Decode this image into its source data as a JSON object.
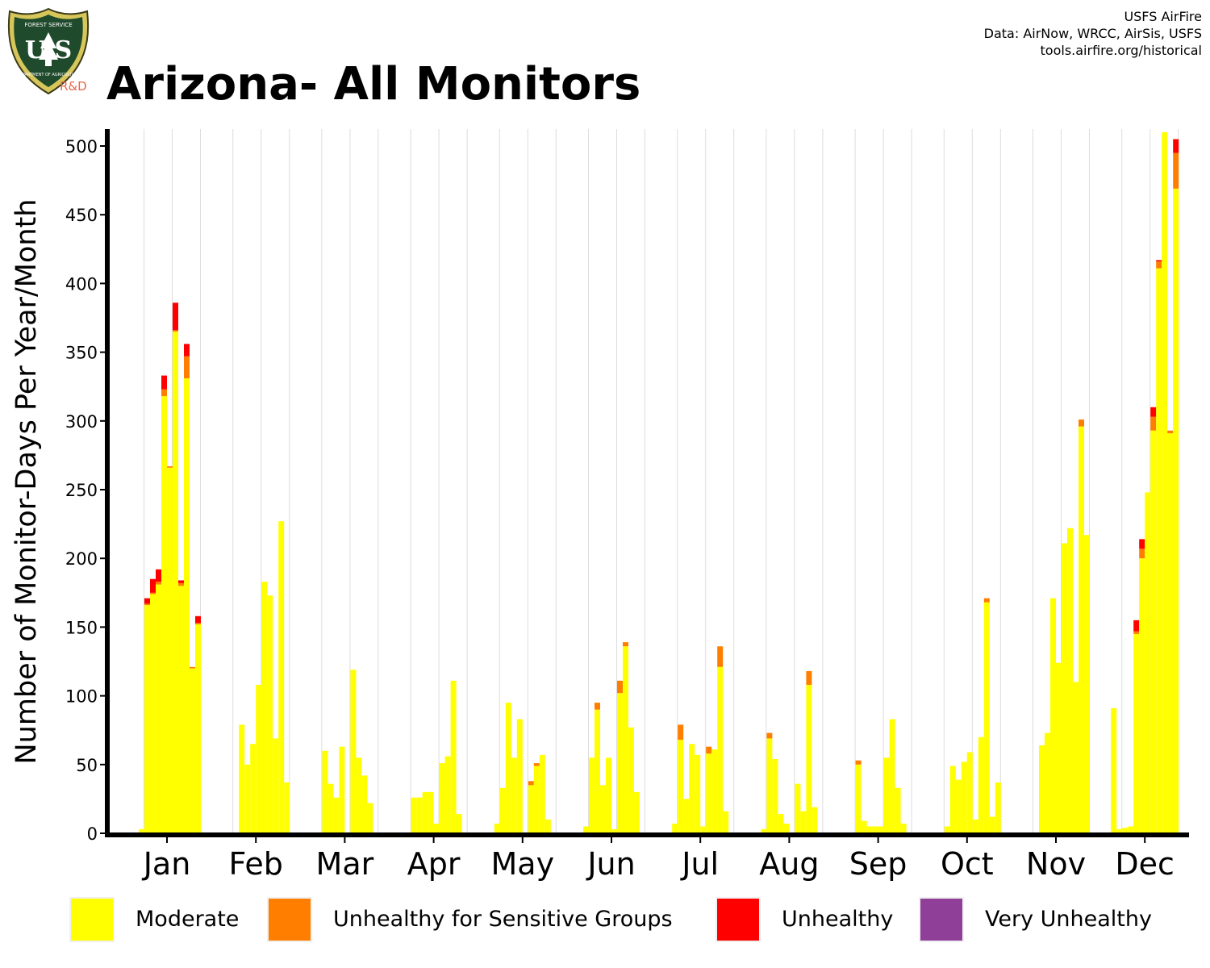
{
  "header": {
    "title": "Arizona- All Monitors",
    "logo_text_top": "FOREST SERVICE",
    "logo_letters": "U S",
    "logo_text_bottom": "DEPARTMENT OF AGRICULTURE",
    "logo_tag": "R&D",
    "credits": [
      "USFS AirFire",
      "Data: AirNow, WRCC, AirSis, USFS",
      "tools.airfire.org/historical"
    ]
  },
  "colors": {
    "moderate": "#ffff00",
    "usg": "#ff7e00",
    "unhealthy": "#ff0000",
    "very_unhealthy": "#8f3f97",
    "axis": "#000000",
    "grid": "#dddddd"
  },
  "legend": [
    {
      "label": "Moderate",
      "color": "#ffff00"
    },
    {
      "label": "Unhealthy for Sensitive Groups",
      "color": "#ff7e00"
    },
    {
      "label": "Unhealthy",
      "color": "#ff0000"
    },
    {
      "label": "Very Unhealthy",
      "color": "#8f3f97"
    }
  ],
  "chart_data": {
    "type": "bar",
    "stacked": true,
    "title": "Arizona- All Monitors",
    "xlabel": "",
    "ylabel": "Number of Monitor-Days Per Year/Month",
    "ylim": [
      0,
      510
    ],
    "yticks": [
      0,
      50,
      100,
      150,
      200,
      250,
      300,
      350,
      400,
      450,
      500
    ],
    "grid": "vertical",
    "legend_position": "bottom",
    "categories": [
      "Jan",
      "Feb",
      "Mar",
      "Apr",
      "May",
      "Jun",
      "Jul",
      "Aug",
      "Sep",
      "Oct",
      "Nov",
      "Dec"
    ],
    "bars_per_month": 12,
    "series": [
      {
        "name": "Moderate",
        "color": "#ffff00",
        "values": [
          [
            0,
            3,
            166,
            174,
            181,
            318,
            266,
            365,
            180,
            331,
            120,
            152
          ],
          [
            0,
            0,
            0,
            79,
            50,
            65,
            108,
            183,
            173,
            69,
            227,
            37
          ],
          [
            0,
            0,
            60,
            36,
            26,
            63,
            0,
            119,
            55,
            42,
            22,
            0
          ],
          [
            0,
            0,
            26,
            26,
            30,
            30,
            7,
            51,
            56,
            111,
            14,
            0
          ],
          [
            0,
            7,
            33,
            95,
            55,
            83,
            0,
            35,
            49,
            57,
            10,
            0
          ],
          [
            0,
            5,
            55,
            90,
            35,
            55,
            3,
            102,
            136,
            77,
            30,
            0
          ],
          [
            0,
            7,
            68,
            25,
            65,
            57,
            5,
            58,
            61,
            121,
            16,
            0
          ],
          [
            0,
            3,
            69,
            54,
            14,
            7,
            0,
            36,
            16,
            108,
            19,
            0
          ],
          [
            0,
            0,
            50,
            9,
            5,
            5,
            5,
            55,
            83,
            33,
            7,
            0
          ],
          [
            0,
            0,
            5,
            49,
            39,
            52,
            59,
            10,
            70,
            168,
            12,
            37
          ],
          [
            0,
            0,
            0,
            64,
            73,
            171,
            124,
            211,
            222,
            110,
            296,
            217
          ],
          [
            91,
            3,
            4,
            5,
            145,
            200,
            248,
            293,
            411,
            515,
            291,
            469
          ]
        ]
      },
      {
        "name": "Unhealthy for Sensitive Groups",
        "color": "#ff7e00",
        "values": [
          [
            0,
            0,
            1,
            1,
            2,
            5,
            1,
            1,
            2,
            16,
            1,
            1
          ],
          [
            0,
            0,
            0,
            0,
            0,
            0,
            0,
            0,
            0,
            0,
            0,
            0
          ],
          [
            0,
            0,
            0,
            0,
            0,
            0,
            0,
            0,
            0,
            0,
            0,
            0
          ],
          [
            0,
            0,
            0,
            0,
            0,
            0,
            0,
            0,
            0,
            0,
            0,
            0
          ],
          [
            0,
            0,
            0,
            0,
            0,
            0,
            0,
            3,
            2,
            0,
            0,
            0
          ],
          [
            0,
            0,
            0,
            5,
            0,
            0,
            0,
            9,
            3,
            0,
            0,
            0
          ],
          [
            0,
            0,
            11,
            0,
            0,
            0,
            0,
            5,
            0,
            15,
            0,
            0
          ],
          [
            0,
            0,
            4,
            0,
            0,
            0,
            0,
            0,
            0,
            10,
            0,
            0
          ],
          [
            0,
            0,
            3,
            0,
            0,
            0,
            0,
            0,
            0,
            0,
            0,
            0
          ],
          [
            0,
            0,
            0,
            0,
            0,
            0,
            0,
            0,
            0,
            3,
            0,
            0
          ],
          [
            0,
            0,
            0,
            0,
            0,
            0,
            0,
            0,
            0,
            0,
            5,
            0
          ],
          [
            0,
            0,
            0,
            0,
            2,
            7,
            0,
            10,
            5,
            10,
            2,
            26
          ]
        ]
      },
      {
        "name": "Unhealthy",
        "color": "#ff0000",
        "values": [
          [
            0,
            0,
            4,
            10,
            9,
            10,
            0,
            20,
            2,
            9,
            0,
            5
          ],
          [
            0,
            0,
            0,
            0,
            0,
            0,
            0,
            0,
            0,
            0,
            0,
            0
          ],
          [
            0,
            0,
            0,
            0,
            0,
            0,
            0,
            0,
            0,
            0,
            0,
            0
          ],
          [
            0,
            0,
            0,
            0,
            0,
            0,
            0,
            0,
            0,
            0,
            0,
            0
          ],
          [
            0,
            0,
            0,
            0,
            0,
            0,
            0,
            0,
            0,
            0,
            0,
            0
          ],
          [
            0,
            0,
            0,
            0,
            0,
            0,
            0,
            0,
            0,
            0,
            0,
            0
          ],
          [
            0,
            0,
            0,
            0,
            0,
            0,
            0,
            0,
            0,
            0,
            0,
            0
          ],
          [
            0,
            0,
            0,
            0,
            0,
            0,
            0,
            0,
            0,
            0,
            0,
            0
          ],
          [
            0,
            0,
            0,
            0,
            0,
            0,
            0,
            0,
            0,
            0,
            0,
            0
          ],
          [
            0,
            0,
            0,
            0,
            0,
            0,
            0,
            0,
            0,
            0,
            0,
            0
          ],
          [
            0,
            0,
            0,
            0,
            0,
            0,
            0,
            0,
            0,
            0,
            0,
            0
          ],
          [
            0,
            0,
            0,
            0,
            8,
            7,
            0,
            7,
            1,
            2,
            0,
            10
          ]
        ]
      },
      {
        "name": "Very Unhealthy",
        "color": "#8f3f97",
        "values": [
          [
            0,
            0,
            0,
            0,
            0,
            0,
            0,
            0,
            0,
            0,
            0,
            0
          ],
          [
            0,
            0,
            0,
            0,
            0,
            0,
            0,
            0,
            0,
            0,
            0,
            0
          ],
          [
            0,
            0,
            0,
            0,
            0,
            0,
            0,
            0,
            0,
            0,
            0,
            0
          ],
          [
            0,
            0,
            0,
            0,
            0,
            0,
            0,
            0,
            0,
            0,
            0,
            0
          ],
          [
            0,
            0,
            0,
            0,
            0,
            0,
            0,
            0,
            0,
            0,
            0,
            0
          ],
          [
            0,
            0,
            0,
            0,
            0,
            0,
            0,
            0,
            0,
            0,
            0,
            0
          ],
          [
            0,
            0,
            0,
            0,
            0,
            0,
            0,
            0,
            0,
            0,
            0,
            0
          ],
          [
            0,
            0,
            0,
            0,
            0,
            0,
            0,
            0,
            0,
            0,
            0,
            0
          ],
          [
            0,
            0,
            0,
            0,
            0,
            0,
            0,
            0,
            0,
            0,
            0,
            0
          ],
          [
            0,
            0,
            0,
            0,
            0,
            0,
            0,
            0,
            0,
            0,
            0,
            0
          ],
          [
            0,
            0,
            0,
            0,
            0,
            0,
            0,
            0,
            0,
            0,
            0,
            0
          ],
          [
            0,
            0,
            0,
            0,
            0,
            0,
            0,
            0,
            0,
            0,
            0,
            0
          ]
        ]
      }
    ]
  }
}
